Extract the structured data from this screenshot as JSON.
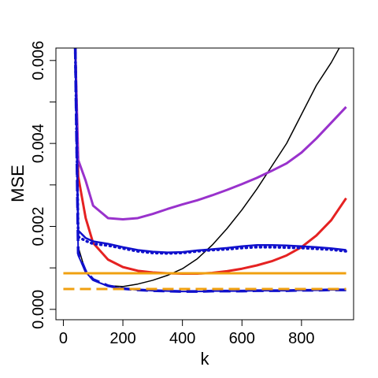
{
  "chart_data": {
    "type": "line",
    "title": "",
    "xlabel": "k",
    "ylabel": "MSE",
    "xlim": [
      -25,
      975
    ],
    "ylim": [
      -0.00025,
      0.0063
    ],
    "x_ticks": [
      0,
      200,
      400,
      600,
      800
    ],
    "x_tick_labels": [
      "0",
      "200",
      "400",
      "600",
      "800"
    ],
    "y_ticks": [
      0.0,
      0.001,
      0.002,
      0.003,
      0.004,
      0.005,
      0.006
    ],
    "y_tick_labels": [
      "0.000",
      "",
      "0.002",
      "",
      "0.004",
      "",
      "0.006"
    ],
    "grid": false,
    "legend": "none",
    "series": [
      {
        "color": "#000000",
        "style": "solid",
        "width": 1.5,
        "x": [
          40,
          50,
          75,
          100,
          150,
          200,
          250,
          300,
          350,
          400,
          450,
          500,
          550,
          600,
          650,
          700,
          750,
          800,
          850,
          900,
          950
        ],
        "y": [
          0.0063,
          0.0015,
          0.0009,
          0.0007,
          0.00057,
          0.00055,
          0.00061,
          0.0007,
          0.00082,
          0.00098,
          0.00122,
          0.00155,
          0.00195,
          0.0024,
          0.0029,
          0.00345,
          0.004,
          0.0047,
          0.0054,
          0.00595,
          0.0066
        ]
      },
      {
        "color": "#e52222",
        "style": "solid",
        "width": 3,
        "x": [
          40,
          50,
          75,
          100,
          150,
          200,
          250,
          300,
          350,
          400,
          450,
          500,
          550,
          600,
          650,
          700,
          750,
          800,
          850,
          900,
          950
        ],
        "y": [
          0.0063,
          0.0032,
          0.0022,
          0.0016,
          0.0012,
          0.00102,
          0.00093,
          0.00089,
          0.00087,
          0.00086,
          0.00086,
          0.00088,
          0.00092,
          0.00098,
          0.00106,
          0.00116,
          0.0013,
          0.0015,
          0.00178,
          0.00215,
          0.00268
        ]
      },
      {
        "color": "#9932cc",
        "style": "solid",
        "width": 3,
        "x": [
          40,
          50,
          75,
          100,
          150,
          200,
          250,
          300,
          350,
          400,
          450,
          500,
          550,
          600,
          650,
          700,
          750,
          800,
          850,
          900,
          950
        ],
        "y": [
          0.0063,
          0.0036,
          0.0031,
          0.0025,
          0.0022,
          0.00217,
          0.0022,
          0.0023,
          0.00242,
          0.00253,
          0.00263,
          0.00275,
          0.00288,
          0.00302,
          0.00317,
          0.00334,
          0.00352,
          0.00378,
          0.00412,
          0.0045,
          0.00488
        ]
      },
      {
        "color": "#1010cc",
        "style": "solid",
        "width": 2.5,
        "x": [
          40,
          50,
          75,
          100,
          150,
          200,
          250,
          300,
          350,
          400,
          450,
          500,
          550,
          600,
          650,
          700,
          750,
          800,
          850,
          900,
          950
        ],
        "y": [
          0.0063,
          0.0019,
          0.00172,
          0.00164,
          0.00158,
          0.0015,
          0.00143,
          0.00139,
          0.00137,
          0.00138,
          0.00142,
          0.00145,
          0.00148,
          0.00152,
          0.00155,
          0.00155,
          0.00154,
          0.00152,
          0.0015,
          0.00147,
          0.00143
        ]
      },
      {
        "color": "#1010cc",
        "style": "dotted",
        "width": 3.5,
        "x": [
          40,
          50,
          75,
          100,
          150,
          200,
          250,
          300,
          350,
          400,
          450,
          500,
          550,
          600,
          650,
          700,
          750,
          800,
          850,
          900,
          950
        ],
        "y": [
          0.0063,
          0.00175,
          0.00165,
          0.00158,
          0.00154,
          0.00147,
          0.0014,
          0.00136,
          0.00135,
          0.00136,
          0.0014,
          0.00143,
          0.00145,
          0.00148,
          0.0015,
          0.0015,
          0.00149,
          0.00148,
          0.00146,
          0.00144,
          0.0014
        ]
      },
      {
        "color": "#1010cc",
        "style": "solid",
        "width": 2,
        "x": [
          40,
          50,
          75,
          100,
          150,
          200,
          250,
          300,
          350,
          400,
          450,
          500,
          550,
          600,
          650,
          700,
          750,
          800,
          850,
          900,
          950
        ],
        "y": [
          0.0063,
          0.0013,
          0.0009,
          0.0007,
          0.00056,
          0.0005,
          0.00047,
          0.00045,
          0.00044,
          0.00043,
          0.00043,
          0.00044,
          0.00044,
          0.00044,
          0.00045,
          0.00045,
          0.00045,
          0.00046,
          0.00046,
          0.00047,
          0.00047
        ]
      },
      {
        "color": "#1010cc",
        "style": "dashed",
        "width": 3.5,
        "x": [
          40,
          50,
          75,
          100,
          150,
          200,
          250,
          300,
          350,
          400,
          450,
          500,
          550,
          600,
          650,
          700,
          750,
          800,
          850,
          900,
          950
        ],
        "y": [
          0.0063,
          0.00135,
          0.00092,
          0.00072,
          0.00057,
          0.0005,
          0.00047,
          0.00045,
          0.00044,
          0.00043,
          0.00043,
          0.00044,
          0.00044,
          0.00044,
          0.00045,
          0.00045,
          0.00045,
          0.00046,
          0.00046,
          0.00047,
          0.00047
        ]
      },
      {
        "color": "#f0a010",
        "style": "solid",
        "width": 3,
        "x": [
          0,
          950
        ],
        "y": [
          0.00087,
          0.00087
        ]
      },
      {
        "color": "#f0a010",
        "style": "dashed",
        "width": 3,
        "x": [
          0,
          950
        ],
        "y": [
          0.00049,
          0.00049
        ]
      }
    ]
  }
}
